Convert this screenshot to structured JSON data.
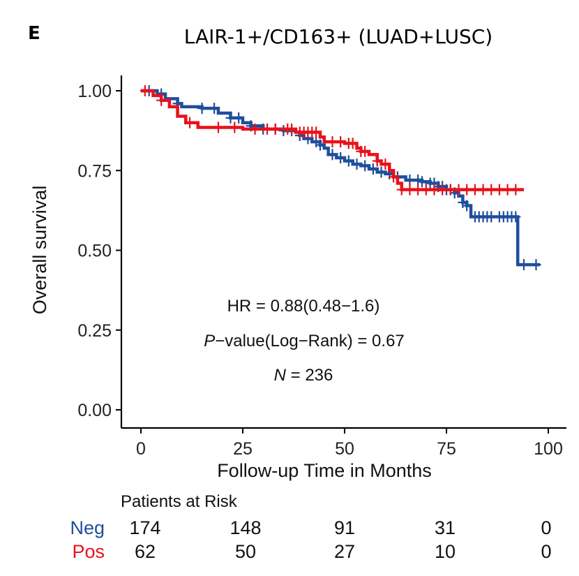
{
  "panel_label": "E",
  "colors": {
    "neg": "#1f4e9c",
    "pos": "#e8121b",
    "axis": "#000000",
    "text": "#111111"
  },
  "chart_data": {
    "type": "line",
    "title": "LAIR-1+/CD163+ (LUAD+LUSC)",
    "xlabel": "Follow-up Time in Months",
    "ylabel": "Overall survival",
    "xlim": [
      0,
      100
    ],
    "ylim": [
      0,
      1
    ],
    "x_ticks": [
      "0",
      "25",
      "50",
      "75",
      "100"
    ],
    "y_ticks": [
      "0.00",
      "0.25",
      "0.50",
      "0.75",
      "1.00"
    ],
    "grid": false,
    "annotations": {
      "hr": "HR = 0.88(0.48−1.6)",
      "p_label": "P",
      "p_rest": "−value(Log−Rank) = 0.67",
      "n_label": "N",
      "n_rest": " = 236"
    },
    "series": [
      {
        "name": "Neg",
        "step_points": [
          [
            0,
            1.0
          ],
          [
            4,
            0.99
          ],
          [
            6,
            0.975
          ],
          [
            9,
            0.96
          ],
          [
            10,
            0.95
          ],
          [
            15,
            0.945
          ],
          [
            19,
            0.93
          ],
          [
            22,
            0.915
          ],
          [
            25,
            0.9
          ],
          [
            27,
            0.89
          ],
          [
            30,
            0.88
          ],
          [
            35,
            0.875
          ],
          [
            38,
            0.87
          ],
          [
            39,
            0.86
          ],
          [
            40,
            0.85
          ],
          [
            42,
            0.84
          ],
          [
            44,
            0.83
          ],
          [
            45,
            0.82
          ],
          [
            46,
            0.8
          ],
          [
            48,
            0.79
          ],
          [
            50,
            0.78
          ],
          [
            52,
            0.77
          ],
          [
            54,
            0.765
          ],
          [
            56,
            0.755
          ],
          [
            58,
            0.745
          ],
          [
            60,
            0.74
          ],
          [
            62,
            0.73
          ],
          [
            65,
            0.72
          ],
          [
            69,
            0.715
          ],
          [
            71,
            0.71
          ],
          [
            73,
            0.7
          ],
          [
            75,
            0.69
          ],
          [
            77,
            0.68
          ],
          [
            78,
            0.67
          ],
          [
            79,
            0.65
          ],
          [
            80,
            0.64
          ],
          [
            81,
            0.605
          ],
          [
            92.5,
            0.455
          ],
          [
            98,
            0.455
          ]
        ],
        "censor_x": [
          2,
          5,
          9,
          15,
          18,
          22,
          24,
          27,
          30,
          33,
          35,
          37,
          39,
          41,
          43,
          44,
          47,
          49,
          51,
          53,
          55,
          57,
          59,
          61,
          63,
          66,
          68,
          69,
          71,
          72,
          73,
          74,
          75,
          76,
          77,
          79,
          80,
          82,
          83,
          84,
          85,
          86,
          88,
          89,
          90,
          91,
          92,
          94,
          97
        ]
      },
      {
        "name": "Pos",
        "step_points": [
          [
            0,
            1.0
          ],
          [
            3,
            0.985
          ],
          [
            5,
            0.97
          ],
          [
            7,
            0.95
          ],
          [
            9,
            0.92
          ],
          [
            11,
            0.9
          ],
          [
            14,
            0.885
          ],
          [
            25,
            0.88
          ],
          [
            38,
            0.87
          ],
          [
            44,
            0.855
          ],
          [
            45,
            0.84
          ],
          [
            50,
            0.835
          ],
          [
            53,
            0.82
          ],
          [
            54,
            0.81
          ],
          [
            56,
            0.8
          ],
          [
            58,
            0.78
          ],
          [
            59,
            0.77
          ],
          [
            61,
            0.75
          ],
          [
            62,
            0.73
          ],
          [
            63,
            0.71
          ],
          [
            64,
            0.69
          ],
          [
            94,
            0.69
          ]
        ],
        "censor_x": [
          1,
          5,
          12,
          19,
          23,
          28,
          31,
          33,
          36,
          37,
          39,
          40,
          41,
          42,
          43,
          47,
          49,
          51,
          52,
          54,
          55,
          58,
          60,
          62,
          64,
          66,
          68,
          70,
          72,
          74,
          76,
          78,
          80,
          82,
          84,
          86,
          88,
          90,
          92
        ]
      }
    ]
  },
  "risk_table": {
    "title": "Patients at Risk",
    "rows": [
      {
        "label": "Neg",
        "values": [
          "174",
          "148",
          "91",
          "31",
          "0"
        ]
      },
      {
        "label": "Pos",
        "values": [
          "62",
          "50",
          "27",
          "10",
          "0"
        ]
      }
    ]
  }
}
